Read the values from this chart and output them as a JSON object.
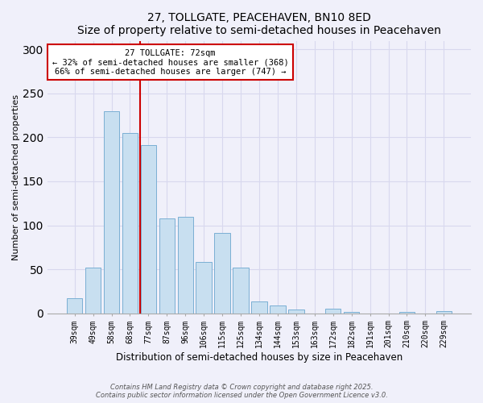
{
  "title": "27, TOLLGATE, PEACEHAVEN, BN10 8ED",
  "subtitle": "Size of property relative to semi-detached houses in Peacehaven",
  "xlabel": "Distribution of semi-detached houses by size in Peacehaven",
  "ylabel": "Number of semi-detached properties",
  "bar_labels": [
    "39sqm",
    "49sqm",
    "58sqm",
    "68sqm",
    "77sqm",
    "87sqm",
    "96sqm",
    "106sqm",
    "115sqm",
    "125sqm",
    "134sqm",
    "144sqm",
    "153sqm",
    "163sqm",
    "172sqm",
    "182sqm",
    "191sqm",
    "201sqm",
    "210sqm",
    "220sqm",
    "229sqm"
  ],
  "bar_values": [
    17,
    52,
    230,
    205,
    191,
    108,
    110,
    58,
    91,
    52,
    13,
    9,
    4,
    0,
    5,
    1,
    0,
    0,
    1,
    0,
    2
  ],
  "bar_color": "#c8dff0",
  "bar_edge_color": "#7bafd4",
  "ylim": [
    0,
    310
  ],
  "yticks": [
    0,
    50,
    100,
    150,
    200,
    250,
    300
  ],
  "vline_x": 3.55,
  "vline_color": "#cc0000",
  "annotation_title": "27 TOLLGATE: 72sqm",
  "annotation_line1": "← 32% of semi-detached houses are smaller (368)",
  "annotation_line2": "66% of semi-detached houses are larger (747) →",
  "footer1": "Contains HM Land Registry data © Crown copyright and database right 2025.",
  "footer2": "Contains public sector information licensed under the Open Government Licence v3.0.",
  "background_color": "#f0f0fa",
  "grid_color": "#d8d8ee"
}
